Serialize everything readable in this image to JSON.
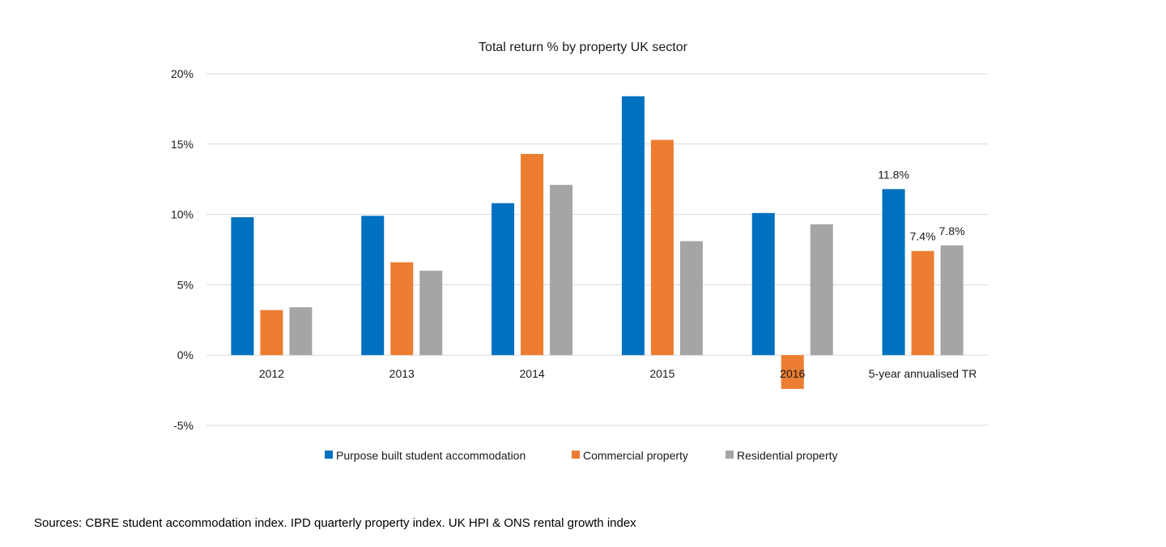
{
  "chart_data": {
    "type": "bar",
    "title": "Total return % by property UK sector",
    "categories": [
      "2012",
      "2013",
      "2014",
      "2015",
      "2016",
      "5-year annualised TR"
    ],
    "series": [
      {
        "name": "Purpose built student accommodation",
        "color": "#0070c0",
        "values": [
          9.8,
          9.9,
          10.8,
          18.4,
          10.1,
          11.8
        ],
        "data_labels": [
          null,
          null,
          null,
          null,
          null,
          "11.8%"
        ]
      },
      {
        "name": "Commercial property",
        "color": "#ed7d31",
        "values": [
          3.2,
          6.6,
          14.3,
          15.3,
          -2.4,
          7.4
        ],
        "data_labels": [
          null,
          null,
          null,
          null,
          null,
          "7.4%"
        ]
      },
      {
        "name": "Residential property",
        "color": "#a5a5a5",
        "values": [
          3.4,
          6.0,
          12.1,
          8.1,
          9.3,
          7.8
        ],
        "data_labels": [
          null,
          null,
          null,
          null,
          null,
          "7.8%"
        ]
      }
    ],
    "y_ticks": [
      20,
      15,
      10,
      5,
      0,
      -5
    ],
    "y_tick_labels": [
      "20%",
      "15%",
      "10%",
      "5%",
      "0%",
      "-5%"
    ],
    "ylim": [
      -5,
      20
    ],
    "xlabel": "",
    "ylabel": "",
    "grid": true,
    "legend_position": "bottom"
  },
  "footer": {
    "source_note": "Sources: CBRE student accommodation index. IPD quarterly property index. UK HPI & ONS rental growth index"
  }
}
